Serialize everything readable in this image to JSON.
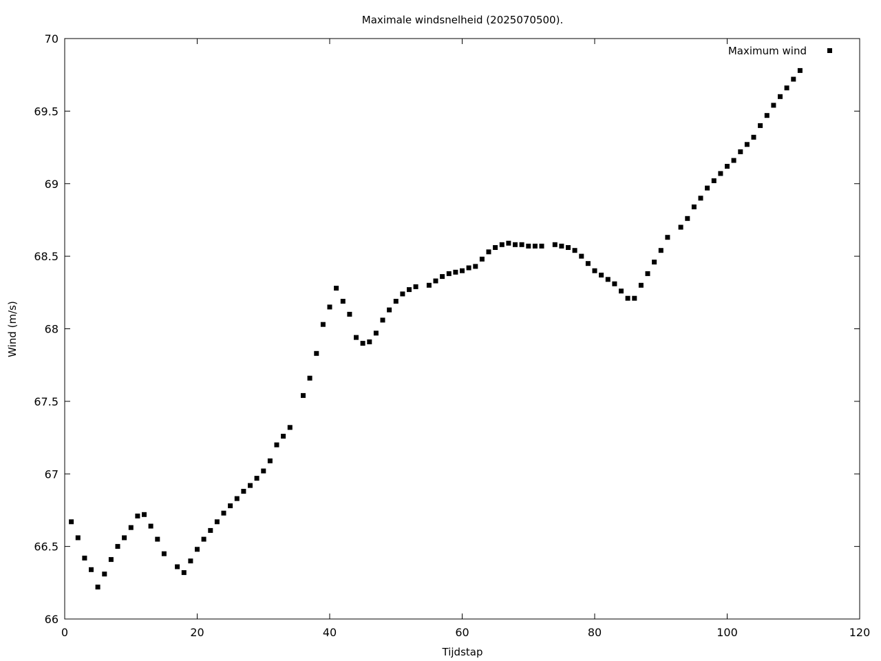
{
  "chart_data": {
    "type": "scatter",
    "title": "Maximale windsnelheid (2025070500).",
    "xlabel": "Tijdstap",
    "ylabel": "Wind (m/s)",
    "xlim": [
      0,
      120
    ],
    "ylim": [
      66,
      70
    ],
    "xticks": [
      0,
      20,
      40,
      60,
      80,
      100,
      120
    ],
    "yticks": [
      66,
      66.5,
      67,
      67.5,
      68,
      68.5,
      69,
      69.5,
      70
    ],
    "xtick_labels": [
      "0",
      "20",
      "40",
      "60",
      "80",
      "100",
      "120"
    ],
    "ytick_labels": [
      "66",
      "66.5",
      "67",
      "67.5",
      "68",
      "68.5",
      "69",
      "69.5",
      "70"
    ],
    "grid": false,
    "legend_position": "top-right",
    "marker_color": "#000000",
    "series": [
      {
        "name": "Maximum wind",
        "marker": "square",
        "x": [
          1,
          2,
          3,
          4,
          5,
          6,
          7,
          8,
          9,
          10,
          11,
          12,
          13,
          14,
          15,
          17,
          18,
          19,
          20,
          21,
          22,
          23,
          24,
          25,
          26,
          27,
          28,
          29,
          30,
          31,
          32,
          33,
          34,
          36,
          37,
          38,
          39,
          40,
          41,
          42,
          43,
          44,
          45,
          46,
          47,
          48,
          49,
          50,
          51,
          52,
          53,
          55,
          56,
          57,
          58,
          59,
          60,
          61,
          62,
          63,
          64,
          65,
          66,
          67,
          68,
          69,
          70,
          71,
          72,
          74,
          75,
          76,
          77,
          78,
          79,
          80,
          81,
          82,
          83,
          84,
          85,
          86,
          87,
          88,
          89,
          90,
          91,
          93,
          94,
          95,
          96,
          97,
          98,
          99,
          100,
          101,
          102,
          103,
          104,
          105,
          106,
          107,
          108,
          109,
          110,
          111
        ],
        "y": [
          66.67,
          66.56,
          66.42,
          66.34,
          66.22,
          66.31,
          66.41,
          66.5,
          66.56,
          66.63,
          66.71,
          66.72,
          66.64,
          66.55,
          66.45,
          66.36,
          66.32,
          66.4,
          66.48,
          66.55,
          66.61,
          66.67,
          66.73,
          66.78,
          66.83,
          66.88,
          66.92,
          66.97,
          67.02,
          67.09,
          67.2,
          67.26,
          67.32,
          67.54,
          67.66,
          67.83,
          68.03,
          68.15,
          68.28,
          68.19,
          68.1,
          67.94,
          67.9,
          67.91,
          67.97,
          68.06,
          68.13,
          68.19,
          68.24,
          68.27,
          68.29,
          68.3,
          68.33,
          68.36,
          68.38,
          68.39,
          68.4,
          68.42,
          68.43,
          68.48,
          68.53,
          68.56,
          68.58,
          68.59,
          68.58,
          68.58,
          68.57,
          68.57,
          68.57,
          68.58,
          68.57,
          68.56,
          68.54,
          68.5,
          68.45,
          68.4,
          68.37,
          68.34,
          68.31,
          68.26,
          68.21,
          68.21,
          68.3,
          68.38,
          68.46,
          68.54,
          68.63,
          68.7,
          68.76,
          68.84,
          68.9,
          68.97,
          69.02,
          69.07,
          69.12,
          69.16,
          69.22,
          69.27,
          69.32,
          69.4,
          69.47,
          69.54,
          69.6,
          69.66,
          69.72,
          69.78
        ]
      }
    ]
  }
}
